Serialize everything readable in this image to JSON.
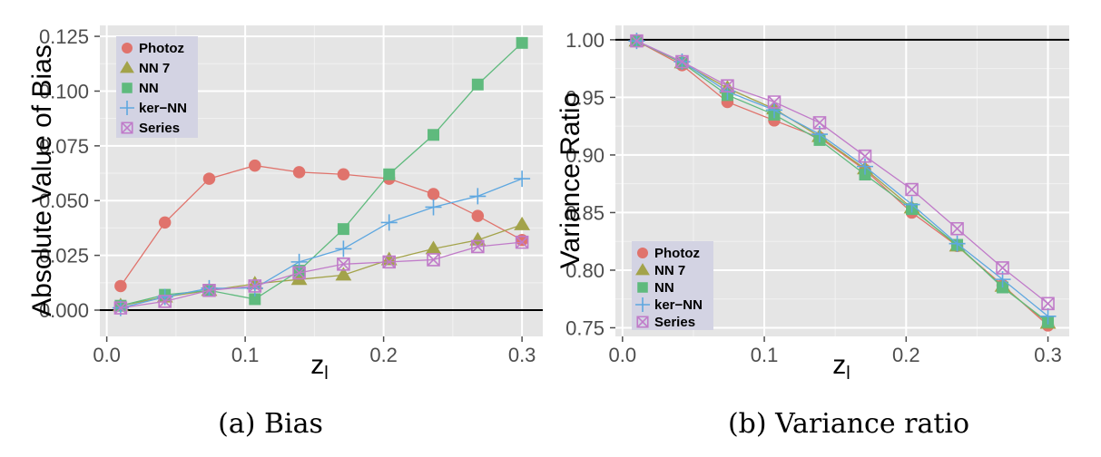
{
  "chart_data": [
    {
      "type": "line",
      "caption": "(a) Bias",
      "xlabel": "z",
      "xlabel_sub": "l",
      "ylabel": "Absolute Value of Bias",
      "xlim": [
        -0.005,
        0.315
      ],
      "ylim": [
        -0.012,
        0.13
      ],
      "xticks": [
        0.0,
        0.1,
        0.2,
        0.3
      ],
      "xtick_labels": [
        "0.0",
        "0.1",
        "0.2",
        "0.3"
      ],
      "yticks": [
        0.0,
        0.025,
        0.05,
        0.075,
        0.1,
        0.125
      ],
      "ytick_labels": [
        "0.000",
        "0.025",
        "0.050",
        "0.075",
        "0.100",
        "0.125"
      ],
      "hline": 0.0,
      "grid": true,
      "legend_position": "top-left",
      "x": [
        0.01,
        0.042,
        0.074,
        0.107,
        0.139,
        0.171,
        0.204,
        0.236,
        0.268,
        0.3
      ],
      "series": [
        {
          "name": "Photoz",
          "marker": "circle",
          "color": "#e0736c",
          "values": [
            0.011,
            0.04,
            0.06,
            0.066,
            0.063,
            0.062,
            0.06,
            0.053,
            0.043,
            0.032
          ]
        },
        {
          "name": "NN 7",
          "marker": "triangle",
          "color": "#a3a34a",
          "values": [
            0.002,
            0.006,
            0.009,
            0.012,
            0.014,
            0.016,
            0.023,
            0.028,
            0.032,
            0.039
          ]
        },
        {
          "name": "NN",
          "marker": "square",
          "color": "#5fba7d",
          "values": [
            0.002,
            0.007,
            0.009,
            0.005,
            0.018,
            0.037,
            0.062,
            0.08,
            0.103,
            0.122
          ]
        },
        {
          "name": "ker−NN",
          "marker": "plus",
          "color": "#5ea7e0",
          "values": [
            0.001,
            0.006,
            0.01,
            0.01,
            0.022,
            0.028,
            0.04,
            0.047,
            0.052,
            0.06
          ]
        },
        {
          "name": "Series",
          "marker": "boxx",
          "color": "#c07bc9",
          "values": [
            0.001,
            0.004,
            0.009,
            0.011,
            0.017,
            0.021,
            0.022,
            0.023,
            0.029,
            0.031
          ]
        }
      ]
    },
    {
      "type": "line",
      "caption": "(b) Variance ratio",
      "xlabel": "z",
      "xlabel_sub": "l",
      "ylabel": "Variance Ratio",
      "xlim": [
        -0.005,
        0.315
      ],
      "ylim": [
        0.7425,
        1.0125
      ],
      "xticks": [
        0.0,
        0.1,
        0.2,
        0.3
      ],
      "xtick_labels": [
        "0.0",
        "0.1",
        "0.2",
        "0.3"
      ],
      "yticks": [
        0.75,
        0.8,
        0.85,
        0.9,
        0.95,
        1.0
      ],
      "ytick_labels": [
        "0.75",
        "0.80",
        "0.85",
        "0.90",
        "0.95",
        "1.00"
      ],
      "hline": 1.0,
      "grid": true,
      "legend_position": "bottom-left",
      "x": [
        0.01,
        0.042,
        0.074,
        0.107,
        0.139,
        0.171,
        0.204,
        0.236,
        0.268,
        0.3
      ],
      "series": [
        {
          "name": "Photoz",
          "marker": "circle",
          "color": "#e0736c",
          "values": [
            0.999,
            0.978,
            0.946,
            0.93,
            0.915,
            0.887,
            0.85,
            0.821,
            0.787,
            0.752
          ]
        },
        {
          "name": "NN 7",
          "marker": "triangle",
          "color": "#a3a34a",
          "values": [
            0.999,
            0.98,
            0.958,
            0.94,
            0.916,
            0.888,
            0.854,
            0.821,
            0.786,
            0.754
          ]
        },
        {
          "name": "NN",
          "marker": "square",
          "color": "#5fba7d",
          "values": [
            0.999,
            0.98,
            0.952,
            0.935,
            0.913,
            0.883,
            0.853,
            0.822,
            0.785,
            0.755
          ]
        },
        {
          "name": "ker−NN",
          "marker": "plus",
          "color": "#5ea7e0",
          "values": [
            0.999,
            0.981,
            0.955,
            0.939,
            0.918,
            0.89,
            0.857,
            0.823,
            0.792,
            0.76
          ]
        },
        {
          "name": "Series",
          "marker": "boxx",
          "color": "#c07bc9",
          "values": [
            0.999,
            0.981,
            0.96,
            0.946,
            0.928,
            0.899,
            0.87,
            0.836,
            0.802,
            0.771
          ]
        }
      ]
    }
  ]
}
